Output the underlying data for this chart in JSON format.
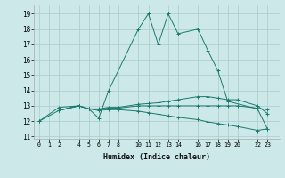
{
  "xlabel": "Humidex (Indice chaleur)",
  "bg_color": "#cce8e8",
  "grid_color": "#aacccc",
  "line_color": "#1a7a6e",
  "xlim": [
    -0.5,
    24.2
  ],
  "ylim": [
    10.85,
    19.55
  ],
  "xticks": [
    0,
    1,
    2,
    4,
    5,
    6,
    7,
    8,
    10,
    11,
    12,
    13,
    14,
    16,
    17,
    18,
    19,
    20,
    22,
    23
  ],
  "yticks": [
    11,
    12,
    13,
    14,
    15,
    16,
    17,
    18,
    19
  ],
  "lines": [
    {
      "x": [
        0,
        2,
        4,
        5,
        6,
        7,
        10,
        11,
        12,
        13,
        14,
        16,
        17,
        18,
        19,
        22,
        23
      ],
      "y": [
        12.0,
        12.9,
        13.0,
        12.8,
        12.2,
        14.0,
        18.0,
        19.0,
        17.0,
        19.0,
        17.7,
        18.0,
        16.6,
        15.3,
        13.3,
        12.8,
        11.5
      ]
    },
    {
      "x": [
        2,
        4,
        5,
        6,
        7,
        8,
        10,
        11,
        12,
        13,
        14,
        16,
        17,
        18,
        19,
        20,
        22,
        23
      ],
      "y": [
        12.7,
        13.0,
        12.8,
        12.8,
        12.9,
        12.9,
        13.1,
        13.15,
        13.2,
        13.3,
        13.4,
        13.6,
        13.6,
        13.5,
        13.4,
        13.4,
        13.0,
        12.5
      ]
    },
    {
      "x": [
        2,
        4,
        5,
        6,
        7,
        8,
        10,
        11,
        12,
        13,
        14,
        16,
        17,
        18,
        19,
        20,
        22,
        23
      ],
      "y": [
        12.7,
        13.0,
        12.8,
        12.75,
        12.85,
        12.85,
        13.0,
        13.0,
        13.0,
        13.0,
        13.0,
        13.0,
        13.0,
        13.0,
        13.0,
        13.0,
        12.85,
        12.75
      ]
    },
    {
      "x": [
        0,
        2,
        4,
        5,
        6,
        7,
        8,
        10,
        11,
        12,
        13,
        14,
        16,
        17,
        18,
        19,
        20,
        22,
        23
      ],
      "y": [
        12.0,
        12.7,
        13.0,
        12.8,
        12.7,
        12.75,
        12.75,
        12.65,
        12.55,
        12.45,
        12.35,
        12.25,
        12.1,
        11.95,
        11.85,
        11.75,
        11.65,
        11.4,
        11.5
      ]
    }
  ]
}
